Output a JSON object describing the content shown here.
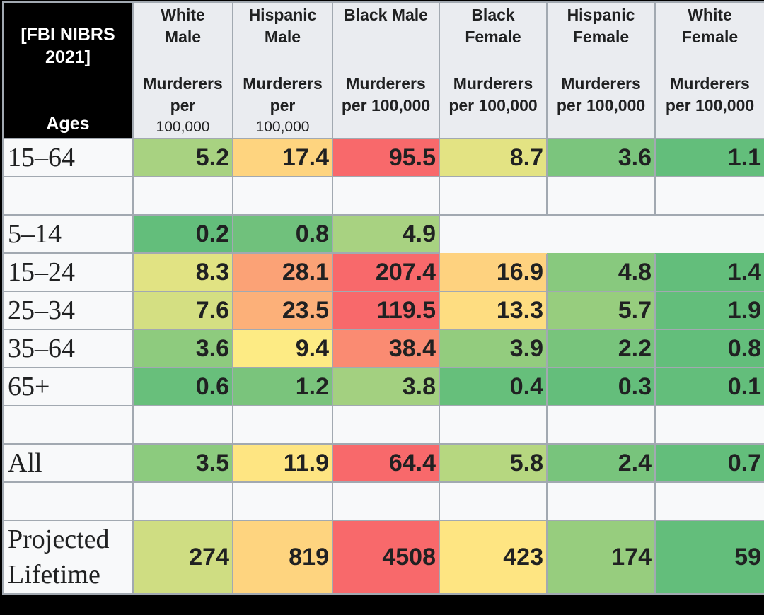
{
  "chart_data": {
    "type": "table",
    "corner": {
      "line1": "[FBI NIBRS",
      "line2": "2021]",
      "line3": "Ages"
    },
    "columns": [
      {
        "group": [
          "White",
          "Male"
        ],
        "unit": [
          "Murderers",
          "per",
          "100,000"
        ]
      },
      {
        "group": [
          "Hispanic",
          "Male"
        ],
        "unit": [
          "Murderers",
          "per",
          "100,000"
        ]
      },
      {
        "group": [
          "Black Male"
        ],
        "unit": [
          "Murderers",
          "per 100,000"
        ]
      },
      {
        "group": [
          "Black",
          "Female"
        ],
        "unit": [
          "Murderers",
          "per 100,000"
        ]
      },
      {
        "group": [
          "Hispanic",
          "Female"
        ],
        "unit": [
          "Murderers",
          "per 100,000"
        ]
      },
      {
        "group": [
          "White",
          "Female"
        ],
        "unit": [
          "Murderers",
          "per 100,000"
        ]
      }
    ],
    "rows": [
      {
        "label": "15–64",
        "values": [
          "5.2",
          "17.4",
          "95.5",
          "8.7",
          "3.6",
          "1.1"
        ],
        "colors": [
          "#a8d281",
          "#fed47f",
          "#f8696b",
          "#e3e383",
          "#7bc57d",
          "#63be7b"
        ]
      },
      {
        "spacer": true
      },
      {
        "label": "5–14",
        "values": [
          "0.2",
          "0.8",
          "4.9"
        ],
        "colors": [
          "#63be7b",
          "#70c17c",
          "#a8d281"
        ]
      },
      {
        "label": "15–24",
        "values": [
          "8.3",
          "28.1",
          "207.4",
          "16.9",
          "4.8",
          "1.4"
        ],
        "colors": [
          "#e1e383",
          "#fba276",
          "#f8696b",
          "#fed27f",
          "#88c97e",
          "#63be7b"
        ]
      },
      {
        "label": "25–34",
        "values": [
          "7.6",
          "23.5",
          "119.5",
          "13.3",
          "5.7",
          "1.9"
        ],
        "colors": [
          "#d4df82",
          "#fcb079",
          "#f8696b",
          "#fedd81",
          "#97cd7e",
          "#63be7b"
        ]
      },
      {
        "label": "35–64",
        "values": [
          "3.6",
          "9.4",
          "38.4",
          "3.9",
          "2.2",
          "0.8"
        ],
        "colors": [
          "#8ecb7e",
          "#fdeb84",
          "#fa8b72",
          "#93cc7e",
          "#78c47c",
          "#63be7b"
        ]
      },
      {
        "label": "65+",
        "values": [
          "0.6",
          "1.2",
          "3.8",
          "0.4",
          "0.3",
          "0.1"
        ],
        "colors": [
          "#68bf7b",
          "#7ac47c",
          "#a3d080",
          "#66bf7b",
          "#64be7b",
          "#63be7b"
        ]
      },
      {
        "spacer": true
      },
      {
        "label": "All",
        "values": [
          "3.5",
          "11.9",
          "64.4",
          "5.8",
          "2.4",
          "0.7"
        ],
        "colors": [
          "#8ccb7e",
          "#fee582",
          "#f8696b",
          "#b6d780",
          "#78c47c",
          "#63be7b"
        ]
      },
      {
        "spacer": true
      },
      {
        "label": "Projected Lifetime",
        "label_lines": [
          "Projected",
          "Lifetime"
        ],
        "values": [
          "274",
          "819",
          "4508",
          "423",
          "174",
          "59"
        ],
        "colors": [
          "#cfdd82",
          "#fed47f",
          "#f8696b",
          "#fee582",
          "#97cd7e",
          "#63be7b"
        ]
      }
    ]
  }
}
